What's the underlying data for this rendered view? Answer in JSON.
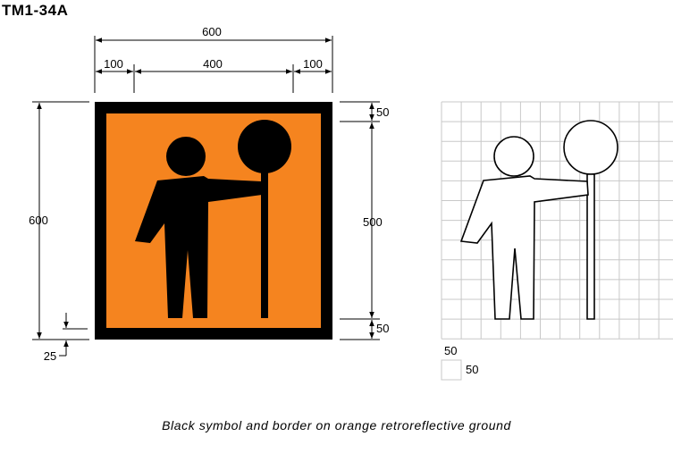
{
  "title": "TM1-34A",
  "caption": "Black symbol and border on orange retroreflective ground",
  "colors": {
    "orange": "#f5841f",
    "black": "#000000",
    "grid": "#c8c8c8"
  },
  "dimensions": {
    "overall_width": "600",
    "left_border": "100",
    "center_width": "400",
    "right_border": "100",
    "overall_height": "600",
    "top_margin": "50",
    "center_height": "500",
    "bottom_margin": "50",
    "border_thickness": "25"
  },
  "grid_key": {
    "cell_width": "50",
    "cell_height": "50"
  }
}
